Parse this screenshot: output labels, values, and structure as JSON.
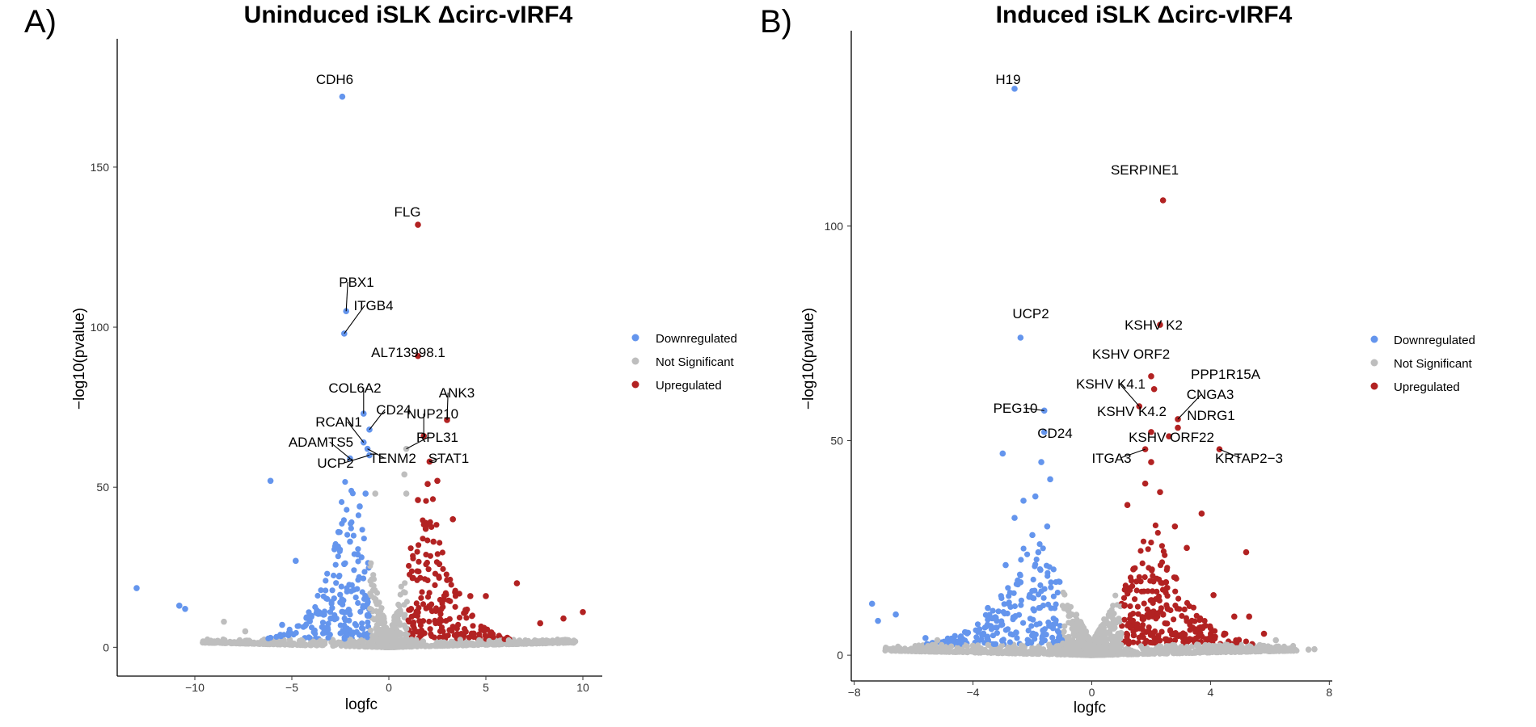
{
  "panel_tags": [
    "A)",
    "B)"
  ],
  "colors": {
    "Downregulated": "#6495ED",
    "Not Significant": "#BEBEBE",
    "Upregulated": "#B22222"
  },
  "chart_data": [
    {
      "type": "scatter",
      "title": "Uninduced iSLK Δcirc-vIRF4",
      "xlabel": "logfc",
      "ylabel": "−log10(pvalue)",
      "xlim": [
        -14,
        11
      ],
      "ylim": [
        -9,
        180
      ],
      "xticks": [
        -10,
        -5,
        0,
        5,
        10
      ],
      "yticks": [
        0,
        50,
        100,
        150
      ],
      "xtick_labels": [
        "−10",
        "−5",
        "0",
        "5",
        "10"
      ],
      "ytick_labels": [
        "0",
        "50",
        "100",
        "150"
      ],
      "legend": {
        "position": "right",
        "entries": [
          "Downregulated",
          "Not Significant",
          "Upregulated"
        ]
      },
      "grid": false,
      "labeled_points": [
        {
          "label": "CDH6",
          "x": -2.4,
          "y": 172,
          "group": "Downregulated"
        },
        {
          "label": "FLG",
          "x": 1.5,
          "y": 132,
          "group": "Upregulated"
        },
        {
          "label": "PBX1",
          "x": -2.2,
          "y": 105,
          "group": "Downregulated"
        },
        {
          "label": "ITGB4",
          "x": -2.3,
          "y": 98,
          "group": "Downregulated"
        },
        {
          "label": "AL713998.1",
          "x": 1.5,
          "y": 91,
          "group": "Upregulated"
        },
        {
          "label": "COL6A2",
          "x": -1.3,
          "y": 73,
          "group": "Downregulated"
        },
        {
          "label": "ANK3",
          "x": 3.0,
          "y": 71,
          "group": "Upregulated"
        },
        {
          "label": "CD24",
          "x": -1.0,
          "y": 68,
          "group": "Downregulated"
        },
        {
          "label": "NUP210",
          "x": 1.8,
          "y": 66,
          "group": "Upregulated"
        },
        {
          "label": "RCAN1",
          "x": -1.3,
          "y": 64,
          "group": "Downregulated"
        },
        {
          "label": "RPL31",
          "x": 0.9,
          "y": 62,
          "group": "Not Significant"
        },
        {
          "label": "ADAMTS5",
          "x": -2.0,
          "y": 59,
          "group": "Downregulated"
        },
        {
          "label": "TENM2",
          "x": -1.1,
          "y": 62,
          "group": "Downregulated"
        },
        {
          "label": "UCP2",
          "x": -1.0,
          "y": 60,
          "group": "Downregulated"
        },
        {
          "label": "STAT1",
          "x": 2.1,
          "y": 58,
          "group": "Upregulated"
        }
      ],
      "other_points": [
        {
          "x": -13.0,
          "y": 18.5,
          "group": "Downregulated"
        },
        {
          "x": -10.8,
          "y": 13,
          "group": "Downregulated"
        },
        {
          "x": -10.5,
          "y": 12,
          "group": "Downregulated"
        },
        {
          "x": -6.1,
          "y": 52,
          "group": "Downregulated"
        },
        {
          "x": -4.8,
          "y": 27,
          "group": "Downregulated"
        },
        {
          "x": -3.6,
          "y": 11,
          "group": "Downregulated"
        },
        {
          "x": -5.5,
          "y": 7,
          "group": "Downregulated"
        },
        {
          "x": -2.6,
          "y": 36,
          "group": "Downregulated"
        },
        {
          "x": -2.0,
          "y": 33,
          "group": "Downregulated"
        },
        {
          "x": -1.5,
          "y": 44,
          "group": "Downregulated"
        },
        {
          "x": -1.2,
          "y": 48,
          "group": "Downregulated"
        },
        {
          "x": -1.6,
          "y": 29,
          "group": "Downregulated"
        },
        {
          "x": -2.3,
          "y": 26,
          "group": "Downregulated"
        },
        {
          "x": -1.8,
          "y": 18,
          "group": "Downregulated"
        },
        {
          "x": -2.5,
          "y": 14,
          "group": "Downregulated"
        },
        {
          "x": -3.0,
          "y": 9,
          "group": "Downregulated"
        },
        {
          "x": 1.5,
          "y": 46,
          "group": "Upregulated"
        },
        {
          "x": 2.0,
          "y": 51,
          "group": "Upregulated"
        },
        {
          "x": 2.5,
          "y": 52,
          "group": "Upregulated"
        },
        {
          "x": 3.3,
          "y": 40,
          "group": "Upregulated"
        },
        {
          "x": 1.9,
          "y": 37,
          "group": "Upregulated"
        },
        {
          "x": 2.3,
          "y": 33,
          "group": "Upregulated"
        },
        {
          "x": 2.6,
          "y": 26,
          "group": "Upregulated"
        },
        {
          "x": 3.0,
          "y": 21,
          "group": "Upregulated"
        },
        {
          "x": 4.2,
          "y": 16,
          "group": "Upregulated"
        },
        {
          "x": 5.0,
          "y": 16,
          "group": "Upregulated"
        },
        {
          "x": 6.6,
          "y": 20,
          "group": "Upregulated"
        },
        {
          "x": 9.0,
          "y": 9,
          "group": "Upregulated"
        },
        {
          "x": 10.0,
          "y": 11,
          "group": "Upregulated"
        },
        {
          "x": 7.8,
          "y": 7.5,
          "group": "Upregulated"
        },
        {
          "x": -8.5,
          "y": 8,
          "group": "Not Significant"
        },
        {
          "x": -7.4,
          "y": 5,
          "group": "Not Significant"
        },
        {
          "x": -9.2,
          "y": 1.5,
          "group": "Not Significant"
        },
        {
          "x": 8.5,
          "y": 1.5,
          "group": "Not Significant"
        },
        {
          "x": 0.8,
          "y": 54,
          "group": "Not Significant"
        },
        {
          "x": -0.7,
          "y": 48,
          "group": "Not Significant"
        },
        {
          "x": 0.9,
          "y": 48,
          "group": "Not Significant"
        }
      ]
    },
    {
      "type": "scatter",
      "title": "Induced iSLK Δcirc-vIRF4",
      "xlabel": "logfc",
      "ylabel": "−log10(pvalue)",
      "xlim": [
        -8.1,
        8.1
      ],
      "ylim": [
        -6,
        138
      ],
      "xticks": [
        -8,
        -4,
        0,
        4,
        8
      ],
      "yticks": [
        0,
        50,
        100
      ],
      "xtick_labels": [
        "−8",
        "−4",
        "0",
        "4",
        "8"
      ],
      "ytick_labels": [
        "0",
        "50",
        "100"
      ],
      "legend": {
        "position": "right",
        "entries": [
          "Downregulated",
          "Not Significant",
          "Upregulated"
        ]
      },
      "grid": false,
      "labeled_points": [
        {
          "label": "H19",
          "x": -2.6,
          "y": 132,
          "group": "Downregulated"
        },
        {
          "label": "SERPINE1",
          "x": 2.4,
          "y": 106,
          "group": "Upregulated"
        },
        {
          "label": "UCP2",
          "x": -2.4,
          "y": 74,
          "group": "Downregulated"
        },
        {
          "label": "KSHV K2",
          "x": 2.3,
          "y": 77,
          "group": "Upregulated"
        },
        {
          "label": "KSHV ORF2",
          "x": 2.0,
          "y": 65,
          "group": "Upregulated"
        },
        {
          "label": "PPP1R15A",
          "x": 2.1,
          "y": 62,
          "group": "Upregulated"
        },
        {
          "label": "KSHV K4.1",
          "x": 1.6,
          "y": 58,
          "group": "Upregulated"
        },
        {
          "label": "PEG10",
          "x": -1.6,
          "y": 57,
          "group": "Downregulated"
        },
        {
          "label": "CNGA3",
          "x": 2.9,
          "y": 55,
          "group": "Upregulated"
        },
        {
          "label": "NDRG1",
          "x": 2.9,
          "y": 53,
          "group": "Upregulated"
        },
        {
          "label": "KSHV K4.2",
          "x": 2.0,
          "y": 52,
          "group": "Upregulated"
        },
        {
          "label": "CD24",
          "x": -1.6,
          "y": 52,
          "group": "Downregulated"
        },
        {
          "label": "KSHV ORF22",
          "x": 2.6,
          "y": 51,
          "group": "Upregulated"
        },
        {
          "label": "ITGA3",
          "x": 1.8,
          "y": 48,
          "group": "Upregulated"
        },
        {
          "label": "KRTAP2−3",
          "x": 4.3,
          "y": 48,
          "group": "Upregulated"
        }
      ],
      "other_points": [
        {
          "x": -7.4,
          "y": 12,
          "group": "Downregulated"
        },
        {
          "x": -7.2,
          "y": 8,
          "group": "Downregulated"
        },
        {
          "x": -6.6,
          "y": 9.5,
          "group": "Downregulated"
        },
        {
          "x": -5.6,
          "y": 4,
          "group": "Downregulated"
        },
        {
          "x": -4.4,
          "y": 3,
          "group": "Downregulated"
        },
        {
          "x": -3.5,
          "y": 11,
          "group": "Downregulated"
        },
        {
          "x": -3.0,
          "y": 47,
          "group": "Downregulated"
        },
        {
          "x": -2.6,
          "y": 32,
          "group": "Downregulated"
        },
        {
          "x": -2.0,
          "y": 28,
          "group": "Downregulated"
        },
        {
          "x": -1.7,
          "y": 45,
          "group": "Downregulated"
        },
        {
          "x": -1.4,
          "y": 41,
          "group": "Downregulated"
        },
        {
          "x": -2.3,
          "y": 36,
          "group": "Downregulated"
        },
        {
          "x": -1.9,
          "y": 37,
          "group": "Downregulated"
        },
        {
          "x": -2.9,
          "y": 21,
          "group": "Downregulated"
        },
        {
          "x": -2.4,
          "y": 17,
          "group": "Downregulated"
        },
        {
          "x": -3.2,
          "y": 8,
          "group": "Downregulated"
        },
        {
          "x": -2.8,
          "y": 12,
          "group": "Downregulated"
        },
        {
          "x": -1.8,
          "y": 24,
          "group": "Downregulated"
        },
        {
          "x": -1.5,
          "y": 30,
          "group": "Downregulated"
        },
        {
          "x": 1.2,
          "y": 35,
          "group": "Upregulated"
        },
        {
          "x": 1.8,
          "y": 40,
          "group": "Upregulated"
        },
        {
          "x": 2.3,
          "y": 38,
          "group": "Upregulated"
        },
        {
          "x": 2.0,
          "y": 45,
          "group": "Upregulated"
        },
        {
          "x": 2.8,
          "y": 30,
          "group": "Upregulated"
        },
        {
          "x": 3.7,
          "y": 33,
          "group": "Upregulated"
        },
        {
          "x": 3.2,
          "y": 25,
          "group": "Upregulated"
        },
        {
          "x": 5.2,
          "y": 24,
          "group": "Upregulated"
        },
        {
          "x": 4.1,
          "y": 14,
          "group": "Upregulated"
        },
        {
          "x": 4.8,
          "y": 9,
          "group": "Upregulated"
        },
        {
          "x": 5.3,
          "y": 9,
          "group": "Upregulated"
        },
        {
          "x": 5.8,
          "y": 5,
          "group": "Upregulated"
        },
        {
          "x": 1.4,
          "y": 20,
          "group": "Upregulated"
        },
        {
          "x": 2.5,
          "y": 17,
          "group": "Upregulated"
        },
        {
          "x": -6.6,
          "y": 1.5,
          "group": "Not Significant"
        },
        {
          "x": -6.0,
          "y": 1.2,
          "group": "Not Significant"
        },
        {
          "x": 6.6,
          "y": 1.5,
          "group": "Not Significant"
        },
        {
          "x": 7.3,
          "y": 1.3,
          "group": "Not Significant"
        },
        {
          "x": 7.5,
          "y": 1.4,
          "group": "Not Significant"
        },
        {
          "x": -5.2,
          "y": 3.5,
          "group": "Not Significant"
        },
        {
          "x": 6.2,
          "y": 3.5,
          "group": "Not Significant"
        }
      ]
    }
  ]
}
